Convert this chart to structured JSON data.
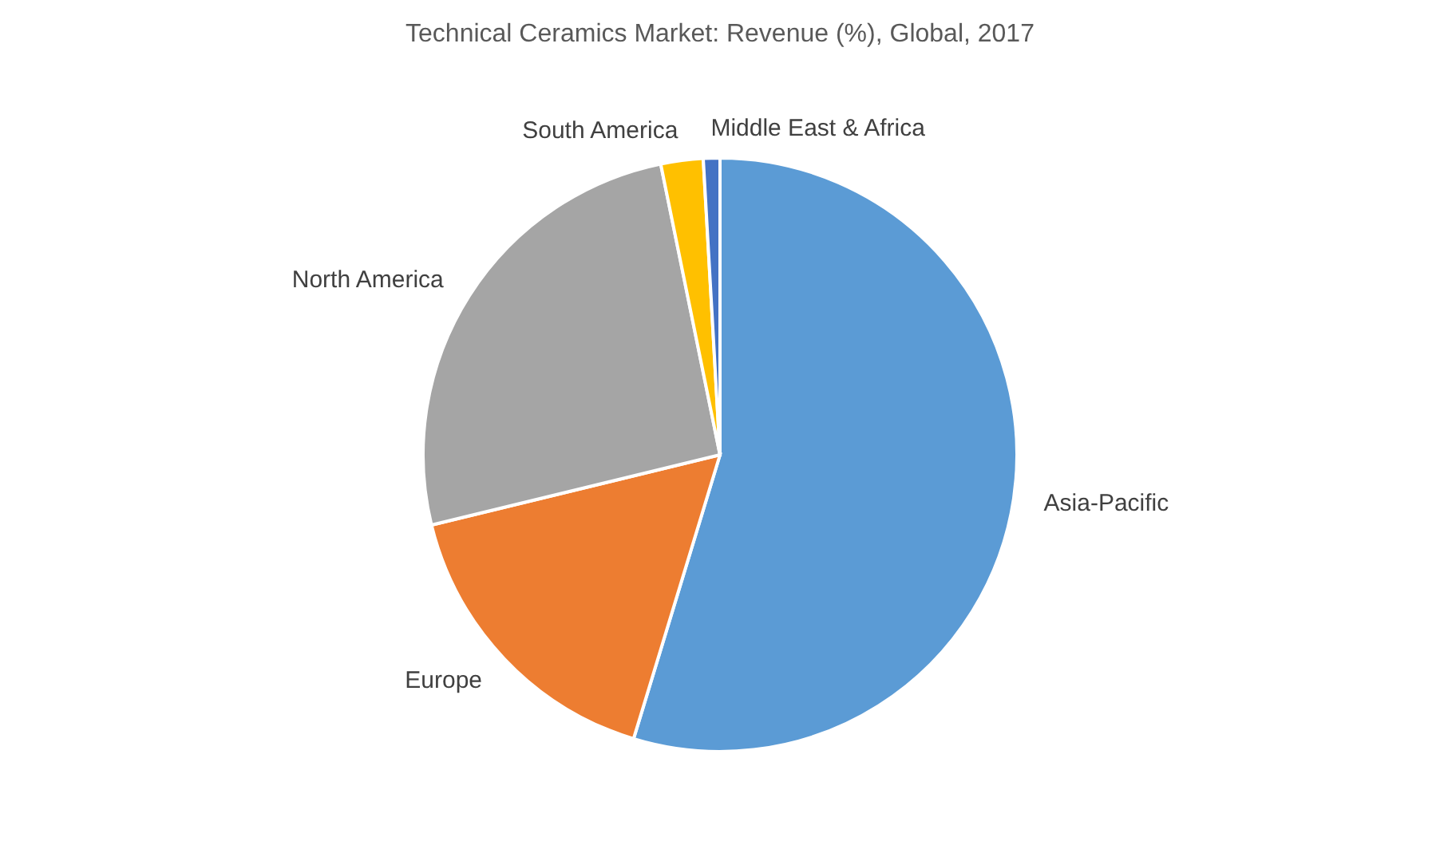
{
  "chart_data": {
    "type": "pie",
    "title": "Technical Ceramics Market: Revenue (%), Global, 2017",
    "categories": [
      "Asia-Pacific",
      "Europe",
      "North America",
      "South America",
      "Middle East & Africa"
    ],
    "values": [
      54.7,
      16.5,
      25.6,
      2.3,
      0.9
    ],
    "colors": [
      "#5b9bd5",
      "#ed7d31",
      "#a5a5a5",
      "#ffc000",
      "#4472c4"
    ],
    "legend": false
  }
}
